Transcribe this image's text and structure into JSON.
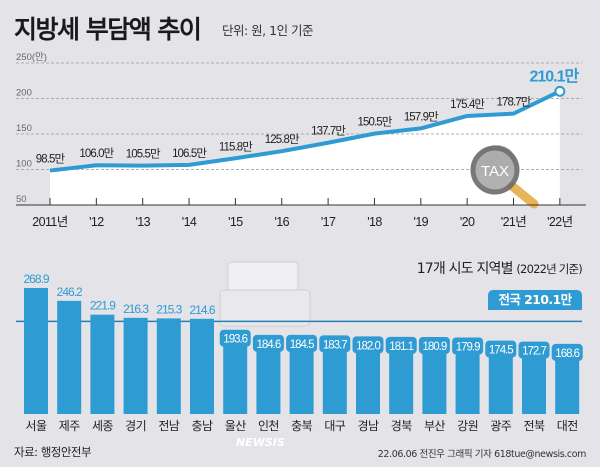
{
  "header": {
    "title": "지방세 부담액 추이",
    "unit": "단위: 원, 1인 기준"
  },
  "chart_data": [
    {
      "type": "line",
      "title": "지방세 부담액 추이",
      "unit_label": "250(만)",
      "yticks": [
        50,
        100,
        150,
        200,
        250
      ],
      "ylim": [
        50,
        250
      ],
      "grid": true,
      "x": [
        "2011년",
        "'12",
        "'13",
        "'14",
        "'15",
        "'16",
        "'17",
        "'18",
        "'19",
        "'20",
        "'21년",
        "'22년"
      ],
      "values": [
        98.5,
        106.0,
        105.5,
        106.5,
        115.8,
        125.8,
        137.7,
        150.5,
        157.9,
        175.4,
        178.7,
        210.1
      ],
      "labels": [
        "98.5만",
        "106.0만",
        "105.5만",
        "106.5만",
        "115.8만",
        "125.8만",
        "137.7만",
        "150.5만",
        "157.9만",
        "175.4만",
        "178.7만",
        "210.1만"
      ],
      "highlight_color": "#2f9bd3"
    },
    {
      "type": "bar",
      "title": "17개 시도 지역별",
      "subtitle": "(2022년 기준)",
      "categories": [
        "서울",
        "제주",
        "세종",
        "경기",
        "전남",
        "충남",
        "울산",
        "인천",
        "충북",
        "대구",
        "경남",
        "경북",
        "부산",
        "강원",
        "광주",
        "전북",
        "대전"
      ],
      "values": [
        268.9,
        246.2,
        221.9,
        216.3,
        215.3,
        214.6,
        193.6,
        184.6,
        184.5,
        183.7,
        182.0,
        181.1,
        180.9,
        179.9,
        174.5,
        172.7,
        168.6
      ],
      "labels": [
        "268.9",
        "246.2",
        "221.9",
        "216.3",
        "215.3",
        "214.6",
        "193.6",
        "184.6",
        "184.5",
        "183.7",
        "182.0",
        "181.1",
        "180.9",
        "179.9",
        "174.5",
        "172.7",
        "168.6"
      ],
      "reference": {
        "label": "전국",
        "value": 210.1,
        "value_label": "210.1만"
      },
      "bar_color": "#2f9bd3"
    }
  ],
  "decor": {
    "tax_icon_text": "TAX",
    "watermark": "NEWSIS"
  },
  "footer": {
    "source": "자료: 행정안전부",
    "credit": "22.06.06 전진우 그래픽 기자 618tue@newsis.com"
  }
}
